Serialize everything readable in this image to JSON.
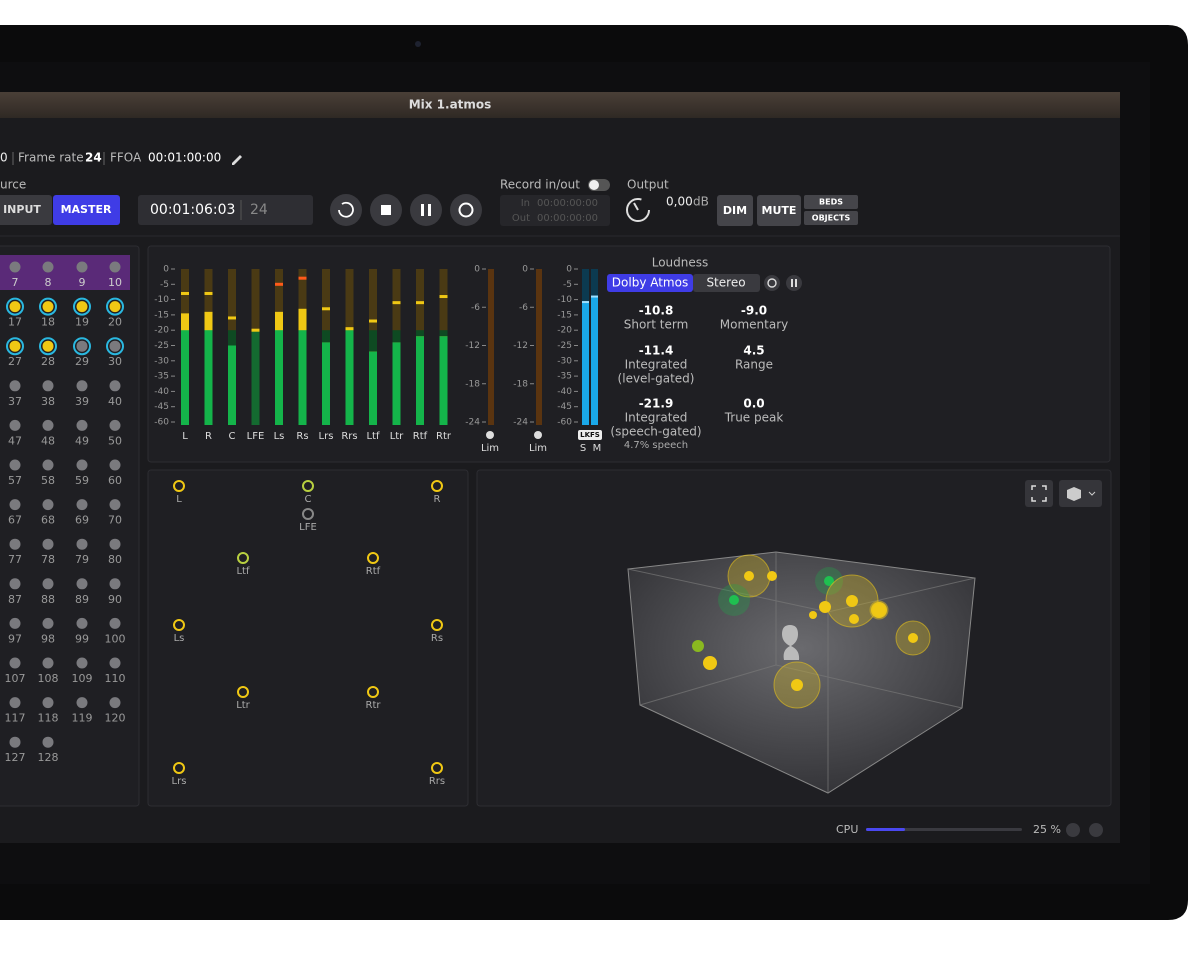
{
  "window": {
    "title": "Mix 1.atmos"
  },
  "info": {
    "sample_rate": "0",
    "frame_rate_label": "Frame rate",
    "frame_rate": "24",
    "ffoa_label": "FFOA",
    "ffoa": "00:01:00:00"
  },
  "source": {
    "label": "urce",
    "input": "INPUT",
    "master": "MASTER"
  },
  "timecode": {
    "time": "00:01:06:03",
    "frames": "24"
  },
  "record": {
    "label": "Record in/out",
    "in_label": "In",
    "in": "00:00:00:00",
    "out_label": "Out",
    "out": "00:00:00:00"
  },
  "output": {
    "label": "Output",
    "value": "0,00",
    "unit": "dB",
    "dim": "DIM",
    "mute": "MUTE",
    "beds": "BEDS",
    "objects": "OBJECTS"
  },
  "channels": [
    [
      7,
      8,
      9,
      10
    ],
    [
      17,
      18,
      19,
      20
    ],
    [
      27,
      28,
      29,
      30
    ],
    [
      37,
      38,
      39,
      40
    ],
    [
      47,
      48,
      49,
      50
    ],
    [
      57,
      58,
      59,
      60
    ],
    [
      67,
      68,
      69,
      70
    ],
    [
      77,
      78,
      79,
      80
    ],
    [
      87,
      88,
      89,
      90
    ],
    [
      97,
      98,
      99,
      100
    ],
    [
      107,
      108,
      109,
      110
    ],
    [
      117,
      118,
      119,
      120
    ],
    [
      127,
      128
    ]
  ],
  "meters": {
    "ticks": [
      0,
      -5,
      -10,
      -15,
      -20,
      -25,
      -30,
      -35,
      -40,
      -45,
      -60
    ],
    "channels": [
      {
        "name": "L",
        "level": -14.5,
        "peak": -8
      },
      {
        "name": "R",
        "level": -14,
        "peak": -8
      },
      {
        "name": "C",
        "level": -25,
        "peak": -16
      },
      {
        "name": "LFE",
        "level": -20,
        "peak": -20
      },
      {
        "name": "Ls",
        "level": -14,
        "peak": -5
      },
      {
        "name": "Rs",
        "level": -13,
        "peak": -3
      },
      {
        "name": "Lrs",
        "level": -24,
        "peak": -13
      },
      {
        "name": "Rrs",
        "level": -20,
        "peak": -19.5
      },
      {
        "name": "Ltf",
        "level": -27,
        "peak": -17
      },
      {
        "name": "Ltr",
        "level": -24,
        "peak": -11
      },
      {
        "name": "Rtf",
        "level": -22,
        "peak": -11
      },
      {
        "name": "Rtr",
        "level": -22,
        "peak": -9
      }
    ]
  },
  "limiter": {
    "ticks": [
      0,
      -6,
      -12,
      -18,
      -24
    ],
    "labels": [
      "Lim",
      "Lim"
    ]
  },
  "lkfs": {
    "badge": "LKFS",
    "s": "S",
    "m": "M"
  },
  "loudness": {
    "title": "Loudness",
    "tabs": [
      "Dolby Atmos",
      "Stereo"
    ],
    "stats": [
      {
        "value": "-10.8",
        "label": "Short term"
      },
      {
        "value": "-9.0",
        "label": "Momentary"
      },
      {
        "value": "-11.4",
        "label": "Integrated",
        "sub": "(level-gated)"
      },
      {
        "value": "4.5",
        "label": "Range"
      },
      {
        "value": "-21.9",
        "label": "Integrated",
        "sub": "(speech-gated)"
      },
      {
        "value": "0.0",
        "label": "True peak"
      }
    ],
    "speech": "4.7% speech"
  },
  "speakers": [
    "L",
    "C",
    "R",
    "LFE",
    "Ltf",
    "Rtf",
    "Ls",
    "Rs",
    "Ltr",
    "Rtr",
    "Lrs",
    "Rrs"
  ],
  "cpu": {
    "label": "CPU",
    "value": 25,
    "value_label": "25 %"
  }
}
